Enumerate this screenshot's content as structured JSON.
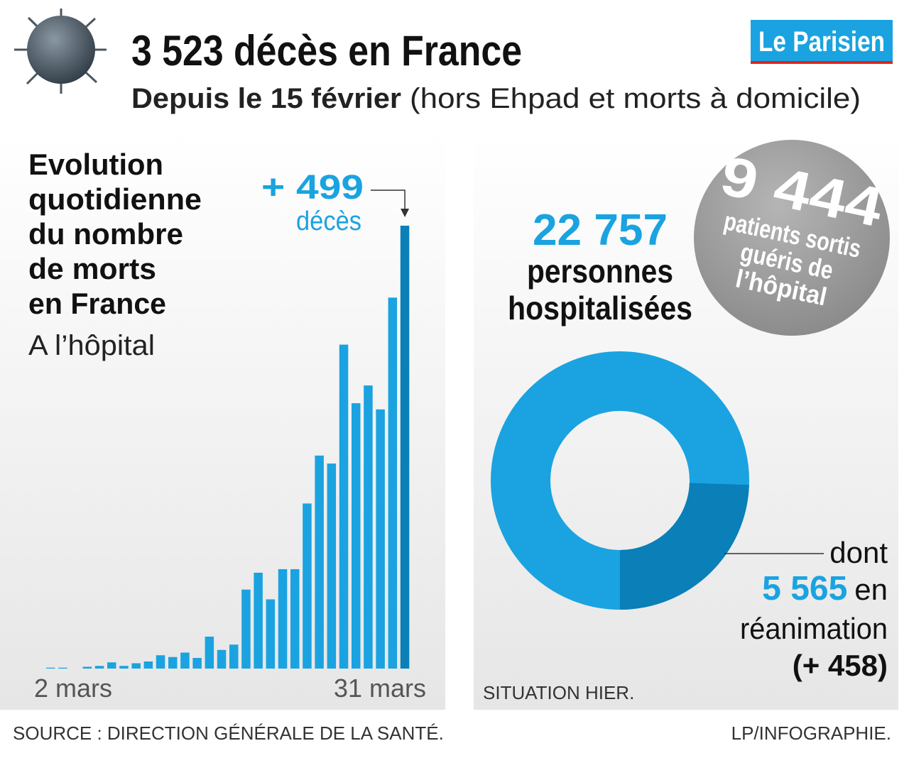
{
  "header": {
    "title": "3 523 décès en France",
    "subtitle_bold": "Depuis le 15 février",
    "subtitle": "(hors Ehpad et morts à domicile)",
    "logo": "Le Parisien"
  },
  "chart_data": [
    {
      "type": "bar",
      "title_lines": [
        "Evolution",
        "quotidienne",
        "du nombre",
        "de morts",
        "en France"
      ],
      "subtitle": "A l’hôpital",
      "categories": [
        "2 mars",
        null,
        null,
        null,
        null,
        null,
        null,
        null,
        null,
        null,
        null,
        null,
        null,
        null,
        null,
        null,
        null,
        null,
        null,
        null,
        null,
        null,
        null,
        null,
        null,
        null,
        null,
        null,
        null,
        "31 mars"
      ],
      "values": [
        1,
        1,
        0,
        2,
        3,
        7,
        3,
        6,
        8,
        15,
        13,
        18,
        12,
        36,
        21,
        27,
        89,
        108,
        78,
        112,
        112,
        186,
        240,
        231,
        365,
        299,
        319,
        292,
        418,
        499
      ],
      "value_labels": [
        null,
        null,
        null,
        null,
        null,
        null,
        null,
        null,
        null,
        null,
        null,
        null,
        null,
        null,
        null,
        null,
        null,
        null,
        null,
        null,
        null,
        null,
        null,
        null,
        null,
        null,
        null,
        null,
        null,
        "+ 499"
      ],
      "annotation": "décès",
      "colors": [
        "#1aa3e0",
        "#0a7fb8"
      ]
    },
    {
      "type": "donut",
      "total": {
        "value": 22757,
        "label": "22 757",
        "caption_lines": [
          "personnes",
          "hospitalisées"
        ],
        "color": "#1aa3e0"
      },
      "part": {
        "value": 5565,
        "label": "5 565",
        "before": "dont",
        "after": "en",
        "caption": "réanimation",
        "change": "(+ 458)",
        "color": "#0a7fb8"
      },
      "bubble": {
        "number": "9 444",
        "lines": [
          "patients sortis",
          "guéris de",
          "l’hôpital"
        ]
      },
      "note": "SITUATION HIER."
    }
  ],
  "footer": {
    "source": "SOURCE : DIRECTION GÉNÉRALE DE LA SANTÉ.",
    "credit": "LP/INFOGRAPHIE."
  }
}
